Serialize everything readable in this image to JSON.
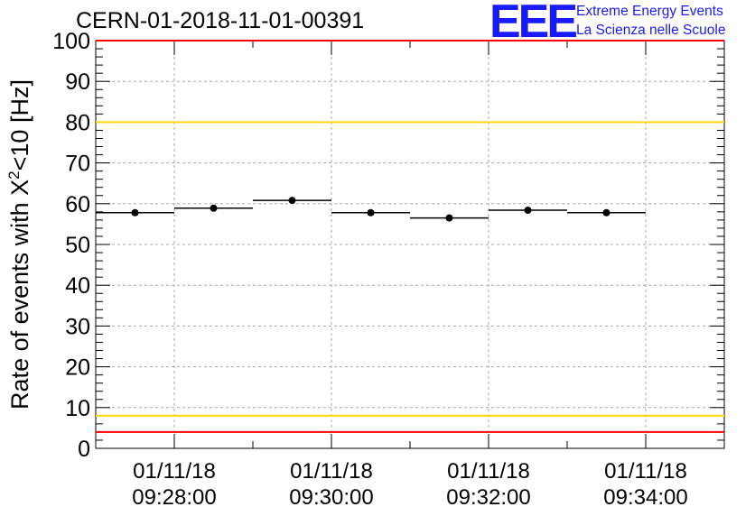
{
  "chart_data": {
    "type": "scatter",
    "title": "CERN-01-2018-11-01-00391",
    "ylabel_prefix": "Rate of events with X",
    "ylabel_sup": "2",
    "ylabel_suffix": "<10 [Hz]",
    "ylim": [
      0,
      100
    ],
    "yticks": [
      0,
      10,
      20,
      30,
      40,
      50,
      60,
      70,
      80,
      90,
      100
    ],
    "xlim": [
      "09:27:00",
      "09:35:00"
    ],
    "xticks": [
      {
        "date": "01/11/18",
        "time": "09:28:00",
        "at": "09:28:00"
      },
      {
        "date": "01/11/18",
        "time": "09:30:00",
        "at": "09:30:00"
      },
      {
        "date": "01/11/18",
        "time": "09:32:00",
        "at": "09:32:00"
      },
      {
        "date": "01/11/18",
        "time": "09:34:00",
        "at": "09:34:00"
      }
    ],
    "grid": true,
    "points": [
      {
        "start": "09:27:00",
        "end": "09:28:00",
        "y": 57.8
      },
      {
        "start": "09:28:00",
        "end": "09:29:00",
        "y": 58.9
      },
      {
        "start": "09:29:00",
        "end": "09:30:00",
        "y": 60.8
      },
      {
        "start": "09:30:00",
        "end": "09:31:00",
        "y": 57.8
      },
      {
        "start": "09:31:00",
        "end": "09:32:00",
        "y": 56.5
      },
      {
        "start": "09:32:00",
        "end": "09:33:00",
        "y": 58.4
      },
      {
        "start": "09:33:00",
        "end": "09:34:00",
        "y": 57.8
      }
    ],
    "reference_lines": [
      {
        "y": 100,
        "color": "#ff0000"
      },
      {
        "y": 80,
        "color": "#ffd700"
      },
      {
        "y": 8,
        "color": "#ffd700"
      },
      {
        "y": 4,
        "color": "#ff0000"
      }
    ]
  },
  "logo": {
    "mark": "EEE",
    "line1": "Extreme Energy Events",
    "line2": "La Scienza nelle Scuole",
    "color": "#1a1aff"
  }
}
